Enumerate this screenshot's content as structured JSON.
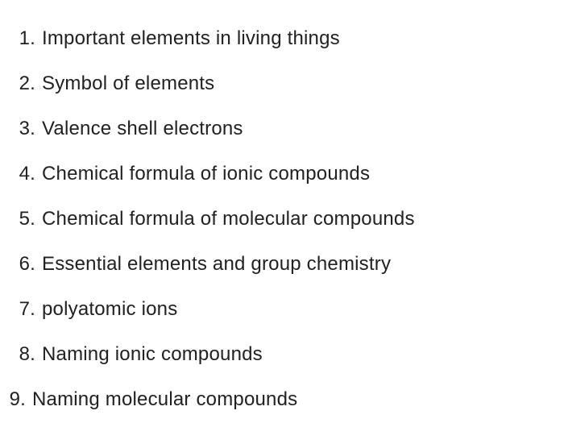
{
  "list": {
    "items": [
      {
        "number": "1.",
        "text": "Important elements in living things"
      },
      {
        "number": "2.",
        "text": "Symbol of elements"
      },
      {
        "number": "3.",
        "text": "Valence shell electrons"
      },
      {
        "number": "4.",
        "text": "Chemical formula of ionic compounds"
      },
      {
        "number": "5.",
        "text": "Chemical formula of molecular compounds"
      },
      {
        "number": "6.",
        "text": "Essential elements and group chemistry"
      },
      {
        "number": "7.",
        "text": "polyatomic ions"
      },
      {
        "number": "8.",
        "text": "Naming ionic compounds"
      },
      {
        "number": "9.",
        "text": "Naming molecular compounds"
      }
    ],
    "text_color": "#212121",
    "background_color": "#ffffff",
    "font_size": 24,
    "font_weight": 300
  }
}
